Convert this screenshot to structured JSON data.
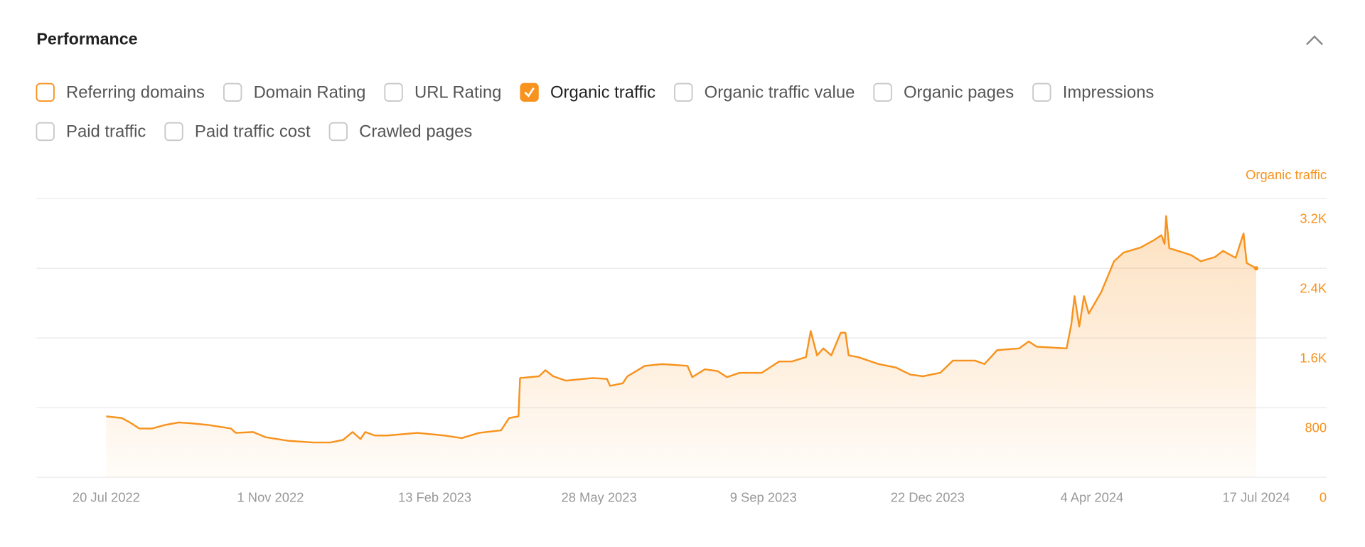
{
  "header": {
    "title": "Performance"
  },
  "filters": [
    [
      {
        "label": "Referring domains",
        "checked": false
      },
      {
        "label": "Domain Rating",
        "checked": false
      },
      {
        "label": "URL Rating",
        "checked": false
      },
      {
        "label": "Organic traffic",
        "checked": true
      },
      {
        "label": "Organic traffic value",
        "checked": false
      },
      {
        "label": "Organic pages",
        "checked": false
      },
      {
        "label": "Impressions",
        "checked": false
      }
    ],
    [
      {
        "label": "Paid traffic",
        "checked": false
      },
      {
        "label": "Paid traffic cost",
        "checked": false
      },
      {
        "label": "Crawled pages",
        "checked": false
      }
    ]
  ],
  "chart_data": {
    "type": "area",
    "y_axis_label": "Organic traffic",
    "grid": true,
    "xlim": [
      "2022-07-20",
      "2024-07-17"
    ],
    "xticks": [
      {
        "value": "2022-07-20",
        "label": "20 Jul 2022"
      },
      {
        "value": "2022-11-01",
        "label": "1 Nov 2022"
      },
      {
        "value": "2023-02-13",
        "label": "13 Feb 2023"
      },
      {
        "value": "2023-05-28",
        "label": "28 May 2023"
      },
      {
        "value": "2023-09-09",
        "label": "9 Sep 2023"
      },
      {
        "value": "2023-12-22",
        "label": "22 Dec 2023"
      },
      {
        "value": "2024-04-04",
        "label": "4 Apr 2024"
      },
      {
        "value": "2024-07-17",
        "label": "17 Jul 2024"
      }
    ],
    "ylim": [
      0,
      3200
    ],
    "yticks": [
      0,
      800,
      {
        "value": 1600,
        "label": "1.6K"
      },
      {
        "value": 2400,
        "label": "2.4K"
      },
      {
        "value": 3200,
        "label": "3.2K"
      }
    ],
    "series": [
      {
        "name": "Organic traffic",
        "color": "#f7931e",
        "x": [
          "2022-07-20",
          "2022-07-30",
          "2022-08-04",
          "2022-08-10",
          "2022-08-18",
          "2022-08-26",
          "2022-09-04",
          "2022-09-12",
          "2022-09-23",
          "2022-10-07",
          "2022-10-10",
          "2022-10-21",
          "2022-10-29",
          "2022-11-12",
          "2022-11-28",
          "2022-12-09",
          "2022-12-17",
          "2022-12-23",
          "2022-12-28",
          "2022-12-31",
          "2023-01-06",
          "2023-01-14",
          "2023-02-02",
          "2023-02-19",
          "2023-03-02",
          "2023-03-13",
          "2023-03-27",
          "2023-04-01",
          "2023-04-07",
          "2023-04-08",
          "2023-04-20",
          "2023-04-24",
          "2023-04-29",
          "2023-05-07",
          "2023-05-24",
          "2023-06-02",
          "2023-06-04",
          "2023-06-12",
          "2023-06-15",
          "2023-06-26",
          "2023-07-07",
          "2023-07-23",
          "2023-07-26",
          "2023-08-03",
          "2023-08-11",
          "2023-08-17",
          "2023-08-25",
          "2023-09-08",
          "2023-09-19",
          "2023-09-27",
          "2023-10-06",
          "2023-10-09",
          "2023-10-13",
          "2023-10-17",
          "2023-10-22",
          "2023-10-28",
          "2023-10-31",
          "2023-11-02",
          "2023-11-08",
          "2023-11-21",
          "2023-12-02",
          "2023-12-11",
          "2023-12-19",
          "2023-12-30",
          "2024-01-07",
          "2024-01-21",
          "2024-01-27",
          "2024-02-04",
          "2024-02-18",
          "2024-02-24",
          "2024-02-29",
          "2024-03-19",
          "2024-03-22",
          "2024-03-24",
          "2024-03-27",
          "2024-03-30",
          "2024-04-02",
          "2024-04-10",
          "2024-04-18",
          "2024-04-24",
          "2024-05-05",
          "2024-05-13",
          "2024-05-18",
          "2024-05-20",
          "2024-05-21",
          "2024-05-23",
          "2024-06-01",
          "2024-06-06",
          "2024-06-12",
          "2024-06-21",
          "2024-06-26",
          "2024-07-04",
          "2024-07-09",
          "2024-07-11",
          "2024-07-17"
        ],
        "values": [
          700,
          680,
          630,
          560,
          560,
          600,
          630,
          620,
          600,
          560,
          510,
          520,
          460,
          420,
          400,
          400,
          430,
          520,
          440,
          520,
          480,
          480,
          510,
          480,
          450,
          510,
          540,
          680,
          700,
          1140,
          1160,
          1230,
          1160,
          1110,
          1140,
          1130,
          1050,
          1080,
          1160,
          1280,
          1300,
          1280,
          1150,
          1240,
          1220,
          1150,
          1200,
          1200,
          1330,
          1330,
          1380,
          1680,
          1400,
          1480,
          1400,
          1660,
          1660,
          1400,
          1380,
          1300,
          1260,
          1180,
          1160,
          1200,
          1340,
          1340,
          1300,
          1460,
          1480,
          1560,
          1500,
          1480,
          1760,
          2080,
          1730,
          2080,
          1880,
          2130,
          2480,
          2580,
          2640,
          2720,
          2780,
          2680,
          3000,
          2630,
          2580,
          2550,
          2480,
          2530,
          2600,
          2520,
          2800,
          2460,
          2400
        ]
      }
    ]
  }
}
